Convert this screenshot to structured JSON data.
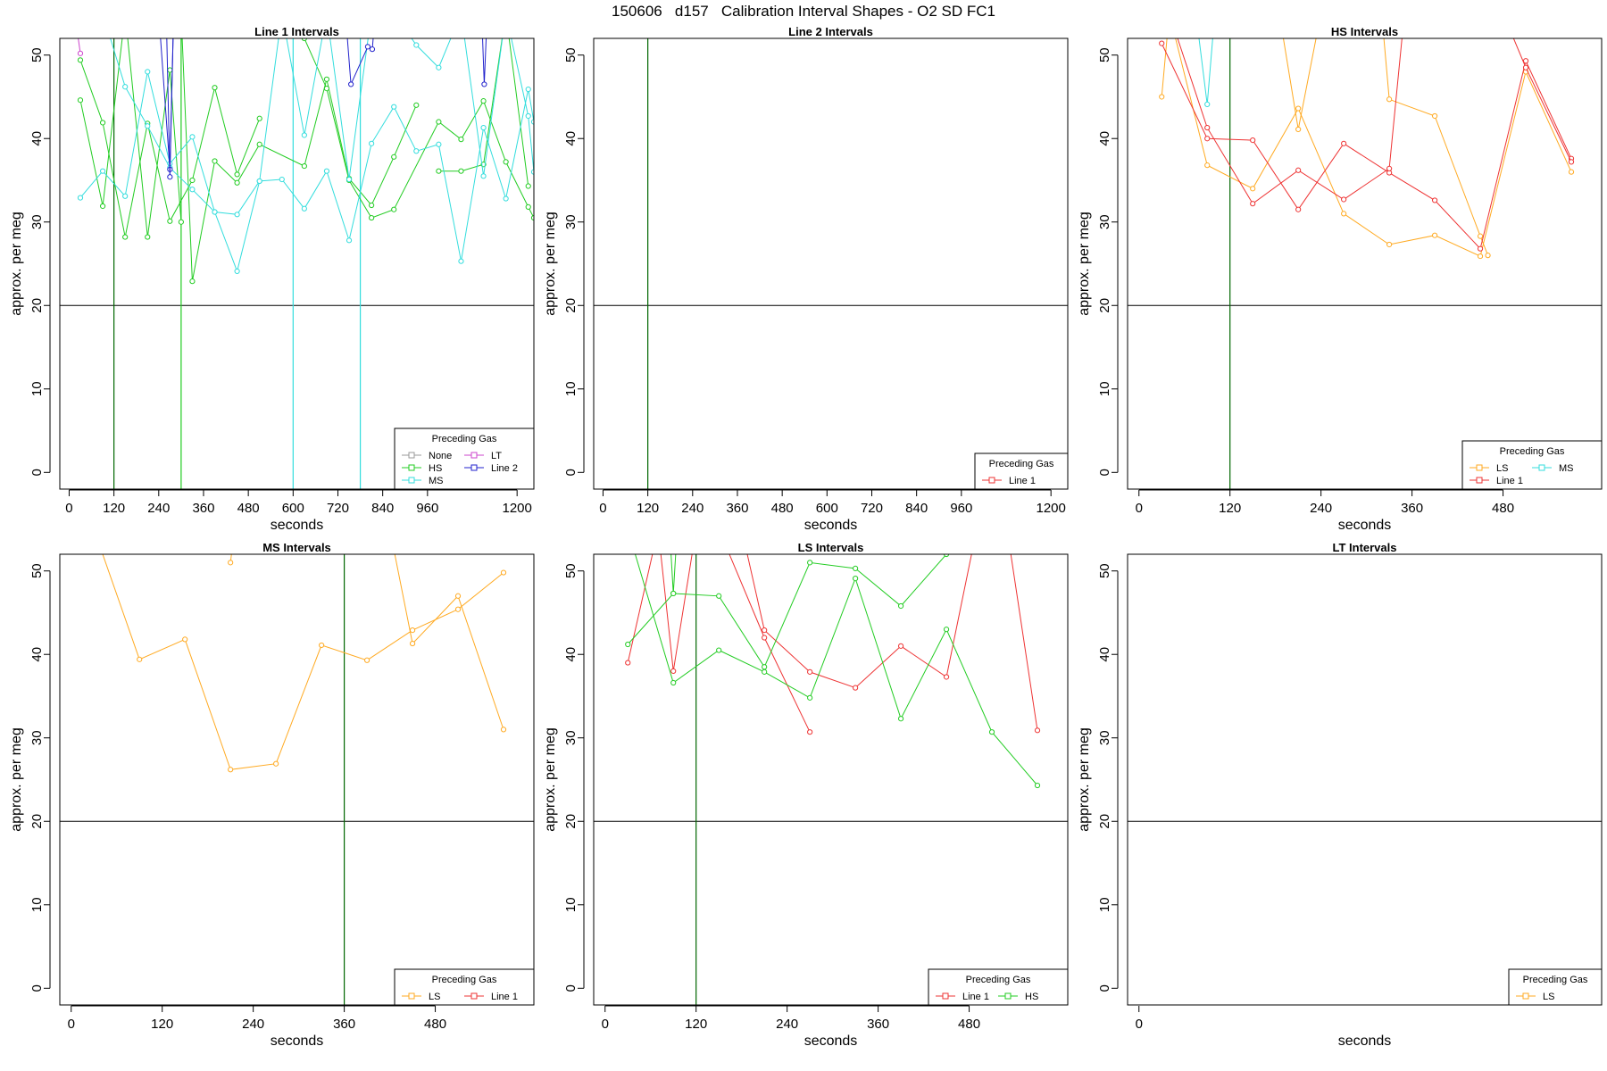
{
  "page_title": "150606   d157   Calibration Interval Shapes - O2 SD FC1",
  "colors": {
    "None": "#999999",
    "HS": "#22cc22",
    "MS": "#33dddd",
    "LT": "#cc44cc",
    "Line 2": "#2222cc",
    "Line 1": "#ee3333",
    "LS": "#ffaa22",
    "ref_horizontal": "#000000",
    "ref_vertical": "#006600"
  },
  "chart_data": [
    {
      "type": "line",
      "title": "Line 1 Intervals",
      "xlabel": "seconds",
      "ylabel": "approx. per meg",
      "xlim": [
        -25,
        1245
      ],
      "ylim": [
        -2,
        52
      ],
      "xticks": [
        0,
        120,
        240,
        360,
        480,
        600,
        720,
        840,
        960,
        1200
      ],
      "yticks": [
        0,
        10,
        20,
        30,
        40,
        50
      ],
      "hline": 20,
      "vlines": [
        {
          "x": 120,
          "color": "#006600"
        },
        {
          "x": 300,
          "color": "#22cc22"
        },
        {
          "x": 600,
          "color": "#33dddd"
        },
        {
          "x": 780,
          "color": "#33dddd"
        }
      ],
      "legend": {
        "title": "Preceding Gas",
        "position": "bottom-right",
        "columns": 2,
        "entries": [
          "None",
          "HS",
          "MS",
          "LT",
          "Line 2"
        ]
      },
      "series": [
        {
          "name": "HS",
          "x": [
            30,
            90,
            150,
            210,
            270,
            330,
            390,
            450,
            510
          ],
          "y": [
            49.4,
            41.9,
            28.2,
            41.8,
            30.1,
            35.0,
            46.1,
            35.7,
            42.4
          ]
        },
        {
          "name": "HS",
          "x": [
            30,
            90,
            150,
            210,
            270,
            300
          ],
          "y": [
            44.6,
            31.9,
            55.0,
            28.2,
            48.2,
            30.0
          ]
        },
        {
          "name": "HS",
          "x": [
            300,
            330,
            390,
            450,
            510,
            630,
            690,
            750,
            810,
            870,
            930
          ],
          "y": [
            55.0,
            22.9,
            37.3,
            34.7,
            39.3,
            36.7,
            47.1,
            35.2,
            32.0,
            37.8,
            44.0
          ]
        },
        {
          "name": "HS",
          "x": [
            630,
            690,
            750,
            810,
            870,
            990,
            1050,
            1110,
            1170,
            1230,
            1245
          ],
          "y": [
            52.0,
            46.0,
            35.0,
            30.5,
            31.5,
            42.0,
            39.9,
            44.5,
            37.2,
            31.8,
            30.5
          ]
        },
        {
          "name": "HS",
          "x": [
            990,
            1050,
            1110,
            1170,
            1230
          ],
          "y": [
            36.1,
            36.1,
            36.9,
            55.0,
            34.3
          ]
        },
        {
          "name": "MS",
          "x": [
            30,
            90,
            150,
            210,
            270,
            330,
            390,
            450,
            510,
            570,
            630,
            690,
            750,
            810,
            870,
            930,
            990,
            1050,
            1110,
            1170,
            1230,
            1245
          ],
          "y": [
            32.9,
            36.1,
            33.1,
            48.0,
            37.0,
            40.2,
            31.2,
            30.9,
            34.9,
            35.1,
            31.6,
            36.1,
            27.8,
            39.4,
            43.8,
            38.5,
            39.3,
            25.3,
            41.3,
            32.8,
            45.9,
            42.0
          ]
        },
        {
          "name": "MS",
          "x": [
            90,
            150,
            210,
            270,
            330,
            390,
            450,
            510,
            570,
            630,
            690,
            750,
            810,
            870,
            930,
            990,
            1050,
            1110,
            1170,
            1230,
            1245
          ],
          "y": [
            55.0,
            46.2,
            41.5,
            36.5,
            33.9,
            31.2,
            24.1,
            34.9,
            55.0,
            40.4,
            55.0,
            35.1,
            55.0,
            55.0,
            51.2,
            48.5,
            55.0,
            35.5,
            55.0,
            42.7,
            36.0
          ]
        },
        {
          "name": "LT",
          "x": [
            15,
            30
          ],
          "y": [
            55.0,
            50.2
          ]
        },
        {
          "name": "Line 2",
          "x": [
            240,
            270,
            280,
            320
          ],
          "y": [
            55.0,
            36.3,
            55.0,
            55.0
          ]
        },
        {
          "name": "Line 2",
          "x": [
            260,
            270,
            280
          ],
          "y": [
            55.0,
            35.4,
            55.0
          ]
        },
        {
          "name": "Line 2",
          "x": [
            740,
            755,
            800,
            812,
            820
          ],
          "y": [
            55.0,
            46.5,
            51.0,
            50.7,
            55.0
          ]
        },
        {
          "name": "Line 2",
          "x": [
            1105,
            1112,
            1120
          ],
          "y": [
            55.0,
            46.5,
            55.0
          ]
        }
      ]
    },
    {
      "type": "line",
      "title": "Line 2 Intervals",
      "xlabel": "seconds",
      "ylabel": "approx. per meg",
      "xlim": [
        -25,
        1245
      ],
      "ylim": [
        -2,
        52
      ],
      "xticks": [
        0,
        120,
        240,
        360,
        480,
        600,
        720,
        840,
        960,
        1200
      ],
      "yticks": [
        0,
        10,
        20,
        30,
        40,
        50
      ],
      "hline": 20,
      "vlines": [
        {
          "x": 120,
          "color": "#006600"
        }
      ],
      "legend": {
        "title": "Preceding Gas",
        "position": "bottom-right",
        "columns": 1,
        "entries": [
          "Line 1"
        ]
      },
      "series": []
    },
    {
      "type": "line",
      "title": "HS Intervals",
      "xlabel": "seconds",
      "ylabel": "approx. per meg",
      "xlim": [
        -15,
        610
      ],
      "ylim": [
        -2,
        52
      ],
      "xticks": [
        0,
        120,
        240,
        360,
        480
      ],
      "yticks": [
        0,
        10,
        20,
        30,
        40,
        50
      ],
      "hline": 20,
      "vlines": [
        {
          "x": 120,
          "color": "#006600"
        }
      ],
      "legend": {
        "title": "Preceding Gas",
        "position": "bottom-right",
        "columns": 2,
        "entries": [
          "LS",
          "Line 1",
          "MS"
        ]
      },
      "series": [
        {
          "name": "LS",
          "x": [
            30,
            40
          ],
          "y": [
            45.0,
            55.0
          ]
        },
        {
          "name": "LS",
          "x": [
            40,
            90,
            150,
            210,
            270,
            330,
            390,
            450,
            510,
            570
          ],
          "y": [
            55.0,
            36.8,
            34.0,
            43.6,
            31.0,
            27.3,
            28.4,
            25.9,
            48.0,
            36.0
          ]
        },
        {
          "name": "LS",
          "x": [
            185,
            210,
            240
          ],
          "y": [
            55.0,
            41.1,
            55.0
          ]
        },
        {
          "name": "LS",
          "x": [
            320,
            330,
            390,
            450,
            460
          ],
          "y": [
            55.0,
            44.7,
            42.7,
            28.3,
            26.0
          ]
        },
        {
          "name": "Line 1",
          "x": [
            30,
            90,
            150,
            210,
            270,
            330,
            390,
            450,
            510,
            570
          ],
          "y": [
            51.4,
            40.0,
            39.8,
            31.5,
            39.4,
            35.9,
            32.6,
            26.8,
            49.3,
            37.6
          ]
        },
        {
          "name": "Line 1",
          "x": [
            40,
            90,
            150,
            210,
            270,
            330,
            350
          ],
          "y": [
            55.0,
            41.3,
            32.2,
            36.2,
            32.7,
            36.4,
            55.0
          ]
        },
        {
          "name": "Line 1",
          "x": [
            480,
            510,
            570
          ],
          "y": [
            55.0,
            48.5,
            37.2
          ]
        },
        {
          "name": "MS",
          "x": [
            75,
            90,
            100
          ],
          "y": [
            55.0,
            44.1,
            55.0
          ]
        }
      ]
    },
    {
      "type": "line",
      "title": "MS Intervals",
      "xlabel": "seconds",
      "ylabel": "approx. per meg",
      "xlim": [
        -15,
        610
      ],
      "ylim": [
        -2,
        52
      ],
      "xticks": [
        0,
        120,
        240,
        360,
        480
      ],
      "yticks": [
        0,
        10,
        20,
        30,
        40,
        50
      ],
      "hline": 20,
      "vlines": [
        {
          "x": 360,
          "color": "#006600"
        }
      ],
      "legend": {
        "title": "Preceding Gas",
        "position": "bottom-right",
        "columns": 2,
        "entries": [
          "LS",
          "Line 1"
        ]
      },
      "series": [
        {
          "name": "LS",
          "x": [
            30,
            90,
            150,
            210,
            270,
            330,
            390,
            450,
            510,
            570
          ],
          "y": [
            55.0,
            39.4,
            41.8,
            26.2,
            26.9,
            41.1,
            39.3,
            42.9,
            45.4,
            49.8
          ]
        },
        {
          "name": "LS",
          "x": [
            210,
            215
          ],
          "y": [
            51.0,
            55.0
          ]
        },
        {
          "name": "LS",
          "x": [
            420,
            450,
            510,
            570
          ],
          "y": [
            55.0,
            41.3,
            47.0,
            31.0
          ]
        }
      ]
    },
    {
      "type": "line",
      "title": "LS Intervals",
      "xlabel": "seconds",
      "ylabel": "approx. per meg",
      "xlim": [
        -15,
        610
      ],
      "ylim": [
        -2,
        52
      ],
      "xticks": [
        0,
        120,
        240,
        360,
        480
      ],
      "yticks": [
        0,
        10,
        20,
        30,
        40,
        50
      ],
      "hline": 20,
      "vlines": [
        {
          "x": 120,
          "color": "#006600"
        }
      ],
      "legend": {
        "title": "Preceding Gas",
        "position": "bottom-right",
        "columns": 2,
        "entries": [
          "Line 1",
          "HS"
        ]
      },
      "series": [
        {
          "name": "Line 1",
          "x": [
            30,
            70,
            90,
            120,
            150,
            210,
            270
          ],
          "y": [
            39.0,
            55.0,
            38.0,
            55.0,
            55.0,
            42.0,
            30.7
          ]
        },
        {
          "name": "Line 1",
          "x": [
            180,
            210,
            270,
            330,
            390,
            450,
            490,
            530,
            570
          ],
          "y": [
            55.0,
            42.9,
            37.9,
            36.0,
            41.0,
            37.3,
            55.0,
            55.0,
            30.9
          ]
        },
        {
          "name": "HS",
          "x": [
            30,
            90,
            150,
            210,
            270,
            330,
            390,
            450,
            510,
            570
          ],
          "y": [
            55.0,
            36.6,
            40.5,
            37.9,
            34.8,
            49.1,
            32.3,
            43.0,
            30.7,
            24.3
          ]
        },
        {
          "name": "HS",
          "x": [
            30,
            90,
            150,
            210,
            270,
            330,
            390,
            450
          ],
          "y": [
            41.2,
            47.3,
            47.0,
            38.5,
            51.0,
            50.3,
            45.8,
            52.0
          ]
        },
        {
          "name": "HS",
          "x": [
            85,
            90,
            95
          ],
          "y": [
            55.0,
            47.3,
            55.0
          ]
        }
      ]
    },
    {
      "type": "line",
      "title": "LT Intervals",
      "xlabel": "seconds",
      "ylabel": "approx. per meg",
      "xlim": [
        -15,
        610
      ],
      "ylim": [
        -2,
        52
      ],
      "xticks": [
        0
      ],
      "yticks": [
        0,
        10,
        20,
        30,
        40,
        50
      ],
      "hline": 20,
      "vlines": [],
      "legend": {
        "title": "Preceding Gas",
        "position": "bottom-right",
        "columns": 1,
        "entries": [
          "LS"
        ]
      },
      "series": []
    }
  ]
}
